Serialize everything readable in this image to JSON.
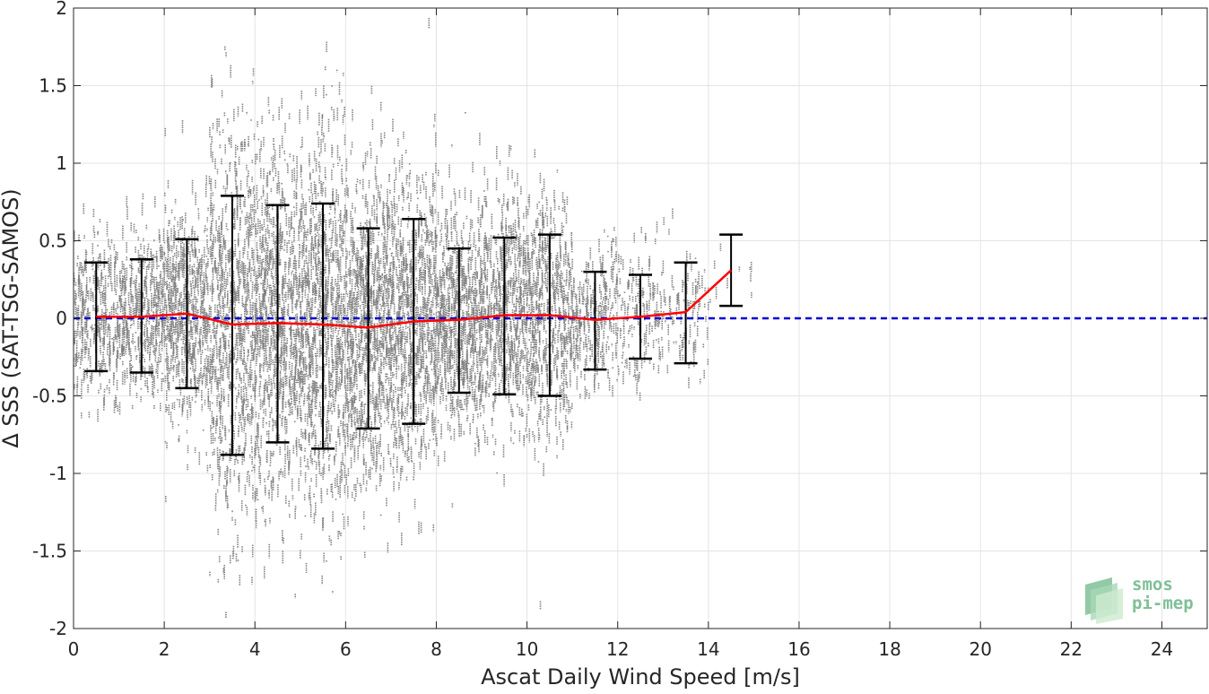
{
  "chart_data": {
    "type": "scatter",
    "xlabel": "Ascat Daily Wind Speed [m/s]",
    "ylabel": "Δ SSS (SAT-TSG-SAMOS)",
    "xlim": [
      0,
      25
    ],
    "ylim": [
      -2,
      2
    ],
    "xticks": [
      0,
      2,
      4,
      6,
      8,
      10,
      12,
      14,
      16,
      18,
      20,
      22,
      24
    ],
    "yticks": [
      -2,
      -1.5,
      -1,
      -0.5,
      0,
      0.5,
      1,
      1.5,
      2
    ],
    "grid": true,
    "legend": "none",
    "colors": {
      "scatter": "#808080",
      "mean_line": "#ff0000",
      "zero_line": "#0000d0",
      "error_bars": "#000000"
    },
    "scatter_spread": {
      "note_x": [
        0.5,
        1.5,
        2.5,
        3.5,
        4.5,
        5.5,
        6.5,
        7.5,
        8.5,
        9.5,
        10.5,
        11.5,
        12.5,
        13.5,
        14.5
      ],
      "std": [
        0.35,
        0.37,
        0.48,
        0.83,
        0.76,
        0.79,
        0.65,
        0.67,
        0.47,
        0.5,
        0.52,
        0.31,
        0.27,
        0.33,
        0.23
      ]
    },
    "series": [
      {
        "type": "line",
        "x": [
          0.5,
          1.5,
          2.5,
          3.5,
          4.5,
          5.5,
          6.5,
          7.5,
          8.5,
          9.5,
          10.5,
          11.5,
          12.5,
          13.5,
          14.5
        ],
        "y": [
          0.01,
          0.01,
          0.03,
          -0.04,
          -0.03,
          -0.04,
          -0.06,
          -0.02,
          -0.01,
          0.02,
          0.02,
          -0.01,
          0.01,
          0.04,
          0.31
        ]
      },
      {
        "type": "errorbar",
        "x": [
          0.5,
          1.5,
          2.5,
          3.5,
          4.5,
          5.5,
          6.5,
          7.5,
          8.5,
          9.5,
          10.5,
          11.5,
          12.5,
          13.5,
          14.5
        ],
        "upper": [
          0.36,
          0.38,
          0.51,
          0.79,
          0.73,
          0.74,
          0.58,
          0.64,
          0.45,
          0.52,
          0.54,
          0.3,
          0.28,
          0.36,
          0.54
        ],
        "lower": [
          -0.34,
          -0.35,
          -0.45,
          -0.88,
          -0.8,
          -0.84,
          -0.71,
          -0.68,
          -0.48,
          -0.49,
          -0.5,
          -0.33,
          -0.26,
          -0.29,
          0.08
        ]
      },
      {
        "type": "reference_line",
        "y": 0
      }
    ]
  },
  "logo": {
    "name": "smos pi-mep",
    "line1": "smos",
    "line2": "pi-mep"
  }
}
